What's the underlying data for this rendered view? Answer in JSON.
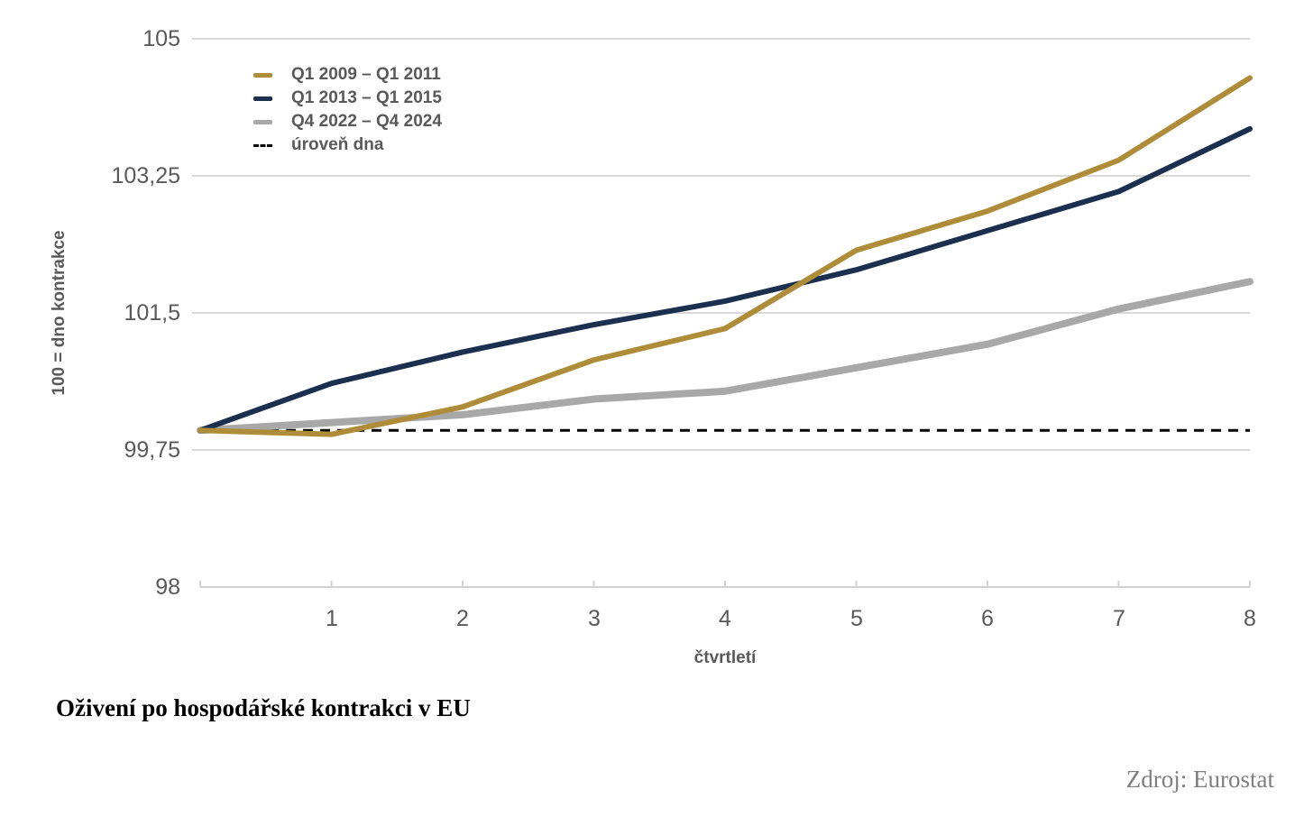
{
  "chart_data": {
    "type": "line",
    "title": "Oživení po hospodářské kontrakci v EU",
    "source": "Zdroj: Eurostat",
    "xlabel": "čtvrtletí",
    "ylabel": "100 = dno kontrakce",
    "xlim": [
      0,
      8
    ],
    "ylim": [
      98,
      105
    ],
    "grid": true,
    "legend_position": "top-left",
    "x": [
      0,
      1,
      2,
      3,
      4,
      5,
      6,
      7,
      8
    ],
    "x_tick_values": [
      1,
      2,
      3,
      4,
      5,
      6,
      7,
      8
    ],
    "x_tick_labels": [
      "1",
      "2",
      "3",
      "4",
      "5",
      "6",
      "7",
      "8"
    ],
    "y_tick_values": [
      105,
      103.25,
      101.5,
      99.75,
      98
    ],
    "y_tick_labels": [
      "105",
      "103,25",
      "101,5",
      "99,75",
      "98"
    ],
    "series": [
      {
        "name": "Q1 2009 – Q1 2011",
        "color": "#AE8C38",
        "stroke_width": 6,
        "values": [
          100,
          99.95,
          100.3,
          100.9,
          101.3,
          102.3,
          102.8,
          103.45,
          104.5
        ]
      },
      {
        "name": "Q1 2013 – Q1 2015",
        "color": "#1B2F4F",
        "stroke_width": 6,
        "values": [
          100,
          100.6,
          101.0,
          101.35,
          101.65,
          102.05,
          102.55,
          103.05,
          103.85
        ]
      },
      {
        "name": "Q4 2022 – Q4 2024",
        "color": "#A8A8A8",
        "stroke_width": 8,
        "values": [
          100,
          100.1,
          100.2,
          100.4,
          100.5,
          100.8,
          101.1,
          101.55,
          101.9
        ]
      }
    ],
    "baseline": {
      "label": "úroveň dna",
      "value": 100,
      "color": "#000000",
      "style": "dashed"
    }
  },
  "colors": {
    "gridline": "#D9D9D9",
    "axis": "#D2D2D2",
    "tick_label": "#595959",
    "legend_text": "#595959",
    "title": "#000000",
    "source": "#7F7F7F"
  }
}
